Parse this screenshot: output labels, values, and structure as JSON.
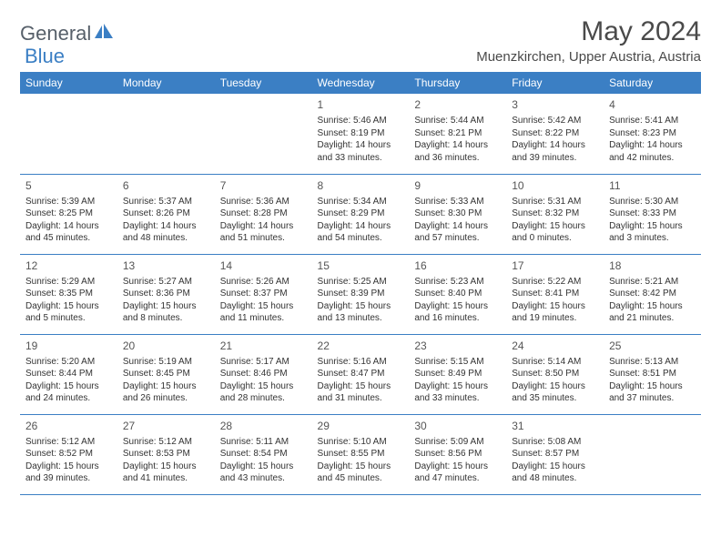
{
  "brand": {
    "part1": "General",
    "part2": "Blue"
  },
  "title": "May 2024",
  "location": "Muenzkirchen, Upper Austria, Austria",
  "colors": {
    "header_bg": "#3b7fc4",
    "header_text": "#ffffff",
    "border": "#3b7fc4",
    "body_text": "#333333",
    "title_text": "#4a4a4a"
  },
  "weekdays": [
    "Sunday",
    "Monday",
    "Tuesday",
    "Wednesday",
    "Thursday",
    "Friday",
    "Saturday"
  ],
  "weeks": [
    [
      null,
      null,
      null,
      {
        "n": "1",
        "sr": "Sunrise: 5:46 AM",
        "ss": "Sunset: 8:19 PM",
        "d1": "Daylight: 14 hours",
        "d2": "and 33 minutes."
      },
      {
        "n": "2",
        "sr": "Sunrise: 5:44 AM",
        "ss": "Sunset: 8:21 PM",
        "d1": "Daylight: 14 hours",
        "d2": "and 36 minutes."
      },
      {
        "n": "3",
        "sr": "Sunrise: 5:42 AM",
        "ss": "Sunset: 8:22 PM",
        "d1": "Daylight: 14 hours",
        "d2": "and 39 minutes."
      },
      {
        "n": "4",
        "sr": "Sunrise: 5:41 AM",
        "ss": "Sunset: 8:23 PM",
        "d1": "Daylight: 14 hours",
        "d2": "and 42 minutes."
      }
    ],
    [
      {
        "n": "5",
        "sr": "Sunrise: 5:39 AM",
        "ss": "Sunset: 8:25 PM",
        "d1": "Daylight: 14 hours",
        "d2": "and 45 minutes."
      },
      {
        "n": "6",
        "sr": "Sunrise: 5:37 AM",
        "ss": "Sunset: 8:26 PM",
        "d1": "Daylight: 14 hours",
        "d2": "and 48 minutes."
      },
      {
        "n": "7",
        "sr": "Sunrise: 5:36 AM",
        "ss": "Sunset: 8:28 PM",
        "d1": "Daylight: 14 hours",
        "d2": "and 51 minutes."
      },
      {
        "n": "8",
        "sr": "Sunrise: 5:34 AM",
        "ss": "Sunset: 8:29 PM",
        "d1": "Daylight: 14 hours",
        "d2": "and 54 minutes."
      },
      {
        "n": "9",
        "sr": "Sunrise: 5:33 AM",
        "ss": "Sunset: 8:30 PM",
        "d1": "Daylight: 14 hours",
        "d2": "and 57 minutes."
      },
      {
        "n": "10",
        "sr": "Sunrise: 5:31 AM",
        "ss": "Sunset: 8:32 PM",
        "d1": "Daylight: 15 hours",
        "d2": "and 0 minutes."
      },
      {
        "n": "11",
        "sr": "Sunrise: 5:30 AM",
        "ss": "Sunset: 8:33 PM",
        "d1": "Daylight: 15 hours",
        "d2": "and 3 minutes."
      }
    ],
    [
      {
        "n": "12",
        "sr": "Sunrise: 5:29 AM",
        "ss": "Sunset: 8:35 PM",
        "d1": "Daylight: 15 hours",
        "d2": "and 5 minutes."
      },
      {
        "n": "13",
        "sr": "Sunrise: 5:27 AM",
        "ss": "Sunset: 8:36 PM",
        "d1": "Daylight: 15 hours",
        "d2": "and 8 minutes."
      },
      {
        "n": "14",
        "sr": "Sunrise: 5:26 AM",
        "ss": "Sunset: 8:37 PM",
        "d1": "Daylight: 15 hours",
        "d2": "and 11 minutes."
      },
      {
        "n": "15",
        "sr": "Sunrise: 5:25 AM",
        "ss": "Sunset: 8:39 PM",
        "d1": "Daylight: 15 hours",
        "d2": "and 13 minutes."
      },
      {
        "n": "16",
        "sr": "Sunrise: 5:23 AM",
        "ss": "Sunset: 8:40 PM",
        "d1": "Daylight: 15 hours",
        "d2": "and 16 minutes."
      },
      {
        "n": "17",
        "sr": "Sunrise: 5:22 AM",
        "ss": "Sunset: 8:41 PM",
        "d1": "Daylight: 15 hours",
        "d2": "and 19 minutes."
      },
      {
        "n": "18",
        "sr": "Sunrise: 5:21 AM",
        "ss": "Sunset: 8:42 PM",
        "d1": "Daylight: 15 hours",
        "d2": "and 21 minutes."
      }
    ],
    [
      {
        "n": "19",
        "sr": "Sunrise: 5:20 AM",
        "ss": "Sunset: 8:44 PM",
        "d1": "Daylight: 15 hours",
        "d2": "and 24 minutes."
      },
      {
        "n": "20",
        "sr": "Sunrise: 5:19 AM",
        "ss": "Sunset: 8:45 PM",
        "d1": "Daylight: 15 hours",
        "d2": "and 26 minutes."
      },
      {
        "n": "21",
        "sr": "Sunrise: 5:17 AM",
        "ss": "Sunset: 8:46 PM",
        "d1": "Daylight: 15 hours",
        "d2": "and 28 minutes."
      },
      {
        "n": "22",
        "sr": "Sunrise: 5:16 AM",
        "ss": "Sunset: 8:47 PM",
        "d1": "Daylight: 15 hours",
        "d2": "and 31 minutes."
      },
      {
        "n": "23",
        "sr": "Sunrise: 5:15 AM",
        "ss": "Sunset: 8:49 PM",
        "d1": "Daylight: 15 hours",
        "d2": "and 33 minutes."
      },
      {
        "n": "24",
        "sr": "Sunrise: 5:14 AM",
        "ss": "Sunset: 8:50 PM",
        "d1": "Daylight: 15 hours",
        "d2": "and 35 minutes."
      },
      {
        "n": "25",
        "sr": "Sunrise: 5:13 AM",
        "ss": "Sunset: 8:51 PM",
        "d1": "Daylight: 15 hours",
        "d2": "and 37 minutes."
      }
    ],
    [
      {
        "n": "26",
        "sr": "Sunrise: 5:12 AM",
        "ss": "Sunset: 8:52 PM",
        "d1": "Daylight: 15 hours",
        "d2": "and 39 minutes."
      },
      {
        "n": "27",
        "sr": "Sunrise: 5:12 AM",
        "ss": "Sunset: 8:53 PM",
        "d1": "Daylight: 15 hours",
        "d2": "and 41 minutes."
      },
      {
        "n": "28",
        "sr": "Sunrise: 5:11 AM",
        "ss": "Sunset: 8:54 PM",
        "d1": "Daylight: 15 hours",
        "d2": "and 43 minutes."
      },
      {
        "n": "29",
        "sr": "Sunrise: 5:10 AM",
        "ss": "Sunset: 8:55 PM",
        "d1": "Daylight: 15 hours",
        "d2": "and 45 minutes."
      },
      {
        "n": "30",
        "sr": "Sunrise: 5:09 AM",
        "ss": "Sunset: 8:56 PM",
        "d1": "Daylight: 15 hours",
        "d2": "and 47 minutes."
      },
      {
        "n": "31",
        "sr": "Sunrise: 5:08 AM",
        "ss": "Sunset: 8:57 PM",
        "d1": "Daylight: 15 hours",
        "d2": "and 48 minutes."
      },
      null
    ]
  ]
}
